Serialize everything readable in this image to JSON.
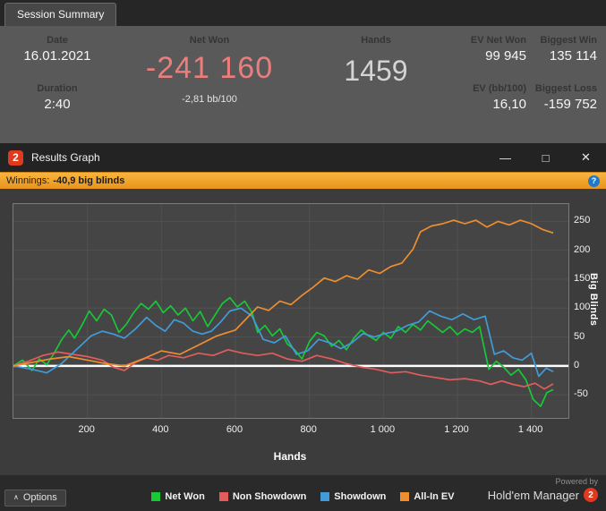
{
  "summary": {
    "tab": "Session Summary",
    "date": {
      "label": "Date",
      "value": "16.01.2021"
    },
    "duration": {
      "label": "Duration",
      "value": "2:40"
    },
    "net_won": {
      "label": "Net Won",
      "value": "-241 160",
      "sub": "-2,81 bb/100",
      "color": "#ec7d7d"
    },
    "hands": {
      "label": "Hands",
      "value": "1459"
    },
    "ev_net_won": {
      "label": "EV Net Won",
      "value": "99 945"
    },
    "ev_bb100": {
      "label": "EV (bb/100)",
      "value": "16,10"
    },
    "biggest_win": {
      "label": "Biggest Win",
      "value": "135 114"
    },
    "biggest_loss": {
      "label": "Biggest Loss",
      "value": "-159 752"
    }
  },
  "window": {
    "title": "Results Graph",
    "logo": "2",
    "controls": {
      "minimize": "—",
      "maximize": "□",
      "close": "✕"
    }
  },
  "winnings_bar": {
    "label": "Winnings:",
    "value": "-40,9 big blinds",
    "help_icon": "?",
    "accent_color": "#f0a232"
  },
  "footer": {
    "options_label": "Options",
    "options_caret": "∧",
    "powered_by": "Powered by",
    "brand": "Hold'em Manager",
    "brand_logo": "2"
  },
  "chart_data": {
    "type": "line",
    "title": "Results Graph",
    "xlabel": "Hands",
    "ylabel": "Big Blinds",
    "xlim": [
      0,
      1500
    ],
    "ylim": [
      -90,
      280
    ],
    "xticks": [
      200,
      400,
      600,
      800,
      1000,
      1200,
      1400
    ],
    "xtick_labels": [
      "200",
      "400",
      "600",
      "800",
      "1 000",
      "1 200",
      "1 400"
    ],
    "yticks": [
      250,
      200,
      150,
      100,
      50,
      0,
      -50
    ],
    "ytick_labels": [
      "250",
      "200",
      "150",
      "100",
      "50",
      "0",
      "-50"
    ],
    "grid": true,
    "grid_color": "#515151",
    "zero_line_color": "#ffffff",
    "legend_position": "bottom",
    "final_net_won_bb": -40.9,
    "series": [
      {
        "name": "Net Won",
        "color": "#17c837",
        "points": [
          [
            0,
            0
          ],
          [
            25,
            10
          ],
          [
            50,
            -8
          ],
          [
            70,
            12
          ],
          [
            90,
            2
          ],
          [
            110,
            22
          ],
          [
            130,
            45
          ],
          [
            150,
            62
          ],
          [
            165,
            48
          ],
          [
            185,
            70
          ],
          [
            205,
            95
          ],
          [
            225,
            78
          ],
          [
            245,
            98
          ],
          [
            265,
            88
          ],
          [
            285,
            58
          ],
          [
            305,
            72
          ],
          [
            325,
            92
          ],
          [
            345,
            108
          ],
          [
            365,
            98
          ],
          [
            385,
            112
          ],
          [
            405,
            92
          ],
          [
            425,
            104
          ],
          [
            445,
            88
          ],
          [
            465,
            100
          ],
          [
            485,
            78
          ],
          [
            505,
            94
          ],
          [
            525,
            68
          ],
          [
            545,
            88
          ],
          [
            565,
            108
          ],
          [
            585,
            118
          ],
          [
            605,
            102
          ],
          [
            625,
            112
          ],
          [
            645,
            92
          ],
          [
            660,
            58
          ],
          [
            680,
            70
          ],
          [
            700,
            52
          ],
          [
            720,
            64
          ],
          [
            740,
            38
          ],
          [
            760,
            28
          ],
          [
            780,
            12
          ],
          [
            800,
            42
          ],
          [
            820,
            58
          ],
          [
            840,
            52
          ],
          [
            860,
            34
          ],
          [
            880,
            44
          ],
          [
            900,
            28
          ],
          [
            920,
            48
          ],
          [
            940,
            62
          ],
          [
            960,
            52
          ],
          [
            980,
            44
          ],
          [
            1000,
            58
          ],
          [
            1020,
            48
          ],
          [
            1040,
            68
          ],
          [
            1060,
            58
          ],
          [
            1080,
            72
          ],
          [
            1100,
            62
          ],
          [
            1120,
            78
          ],
          [
            1140,
            68
          ],
          [
            1160,
            58
          ],
          [
            1180,
            68
          ],
          [
            1200,
            54
          ],
          [
            1220,
            64
          ],
          [
            1240,
            58
          ],
          [
            1260,
            68
          ],
          [
            1285,
            -6
          ],
          [
            1305,
            8
          ],
          [
            1325,
            -2
          ],
          [
            1345,
            -16
          ],
          [
            1365,
            -6
          ],
          [
            1385,
            -24
          ],
          [
            1405,
            -58
          ],
          [
            1425,
            -70
          ],
          [
            1442,
            -46
          ],
          [
            1459,
            -41
          ]
        ]
      },
      {
        "name": "Non Showdown",
        "color": "#e25c5c",
        "points": [
          [
            0,
            0
          ],
          [
            40,
            8
          ],
          [
            80,
            18
          ],
          [
            120,
            24
          ],
          [
            160,
            20
          ],
          [
            200,
            16
          ],
          [
            240,
            10
          ],
          [
            270,
            -2
          ],
          [
            300,
            -8
          ],
          [
            330,
            6
          ],
          [
            360,
            14
          ],
          [
            390,
            10
          ],
          [
            420,
            18
          ],
          [
            460,
            14
          ],
          [
            500,
            22
          ],
          [
            540,
            18
          ],
          [
            580,
            28
          ],
          [
            620,
            22
          ],
          [
            660,
            18
          ],
          [
            700,
            22
          ],
          [
            740,
            12
          ],
          [
            780,
            8
          ],
          [
            820,
            18
          ],
          [
            860,
            12
          ],
          [
            900,
            4
          ],
          [
            940,
            -2
          ],
          [
            980,
            -6
          ],
          [
            1020,
            -12
          ],
          [
            1060,
            -10
          ],
          [
            1100,
            -16
          ],
          [
            1140,
            -20
          ],
          [
            1180,
            -24
          ],
          [
            1220,
            -22
          ],
          [
            1260,
            -26
          ],
          [
            1290,
            -32
          ],
          [
            1320,
            -26
          ],
          [
            1350,
            -32
          ],
          [
            1380,
            -36
          ],
          [
            1410,
            -30
          ],
          [
            1435,
            -40
          ],
          [
            1459,
            -31
          ]
        ]
      },
      {
        "name": "Showdown",
        "color": "#419bd8",
        "points": [
          [
            0,
            0
          ],
          [
            50,
            -6
          ],
          [
            90,
            -12
          ],
          [
            130,
            4
          ],
          [
            170,
            28
          ],
          [
            210,
            52
          ],
          [
            240,
            60
          ],
          [
            270,
            55
          ],
          [
            300,
            48
          ],
          [
            330,
            64
          ],
          [
            360,
            84
          ],
          [
            385,
            70
          ],
          [
            410,
            60
          ],
          [
            435,
            80
          ],
          [
            460,
            74
          ],
          [
            485,
            60
          ],
          [
            510,
            55
          ],
          [
            535,
            60
          ],
          [
            560,
            76
          ],
          [
            585,
            95
          ],
          [
            615,
            100
          ],
          [
            645,
            86
          ],
          [
            675,
            46
          ],
          [
            705,
            40
          ],
          [
            735,
            52
          ],
          [
            765,
            20
          ],
          [
            795,
            26
          ],
          [
            825,
            46
          ],
          [
            855,
            40
          ],
          [
            885,
            30
          ],
          [
            915,
            40
          ],
          [
            945,
            56
          ],
          [
            975,
            50
          ],
          [
            1005,
            56
          ],
          [
            1035,
            60
          ],
          [
            1065,
            70
          ],
          [
            1095,
            76
          ],
          [
            1125,
            95
          ],
          [
            1155,
            86
          ],
          [
            1185,
            80
          ],
          [
            1215,
            90
          ],
          [
            1245,
            80
          ],
          [
            1275,
            86
          ],
          [
            1300,
            20
          ],
          [
            1325,
            26
          ],
          [
            1350,
            14
          ],
          [
            1375,
            10
          ],
          [
            1400,
            22
          ],
          [
            1420,
            -18
          ],
          [
            1440,
            -4
          ],
          [
            1459,
            -10
          ]
        ]
      },
      {
        "name": "All-In EV",
        "color": "#ef8e2e",
        "points": [
          [
            0,
            0
          ],
          [
            50,
            6
          ],
          [
            100,
            12
          ],
          [
            150,
            16
          ],
          [
            200,
            10
          ],
          [
            250,
            4
          ],
          [
            300,
            0
          ],
          [
            350,
            12
          ],
          [
            400,
            26
          ],
          [
            450,
            20
          ],
          [
            500,
            36
          ],
          [
            550,
            52
          ],
          [
            600,
            62
          ],
          [
            630,
            82
          ],
          [
            660,
            102
          ],
          [
            690,
            96
          ],
          [
            720,
            112
          ],
          [
            750,
            106
          ],
          [
            780,
            122
          ],
          [
            810,
            136
          ],
          [
            840,
            152
          ],
          [
            870,
            146
          ],
          [
            900,
            156
          ],
          [
            930,
            150
          ],
          [
            960,
            166
          ],
          [
            990,
            160
          ],
          [
            1020,
            172
          ],
          [
            1050,
            178
          ],
          [
            1080,
            202
          ],
          [
            1100,
            232
          ],
          [
            1130,
            242
          ],
          [
            1160,
            246
          ],
          [
            1190,
            252
          ],
          [
            1220,
            246
          ],
          [
            1250,
            252
          ],
          [
            1280,
            240
          ],
          [
            1310,
            250
          ],
          [
            1340,
            244
          ],
          [
            1370,
            252
          ],
          [
            1400,
            246
          ],
          [
            1430,
            236
          ],
          [
            1459,
            230
          ]
        ]
      }
    ]
  }
}
